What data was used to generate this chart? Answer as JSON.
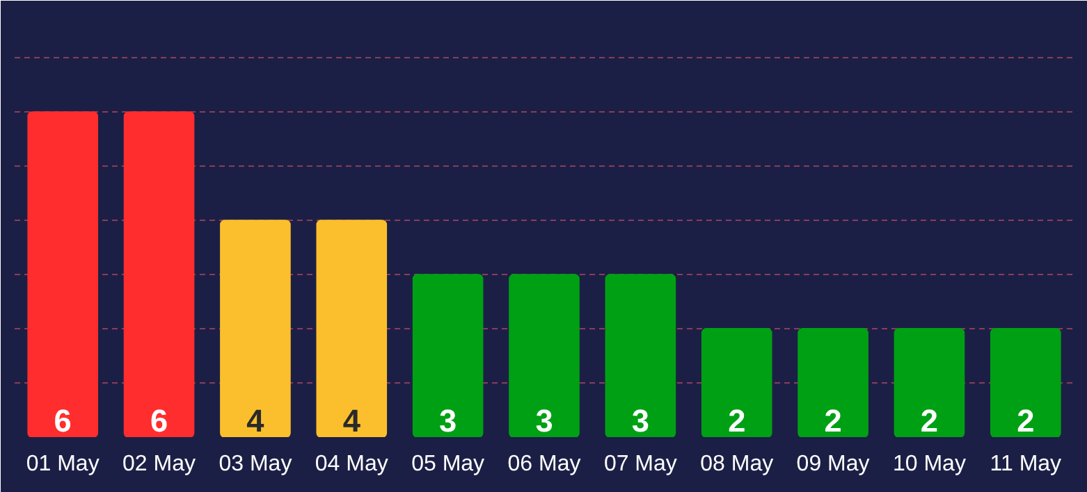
{
  "chart_data": {
    "type": "bar",
    "categories": [
      "01 May",
      "02 May",
      "03 May",
      "04 May",
      "05 May",
      "06 May",
      "07 May",
      "08 May",
      "09 May",
      "10 May",
      "11 May"
    ],
    "values": [
      6,
      6,
      4,
      4,
      3,
      3,
      3,
      2,
      2,
      2,
      2
    ],
    "colors": [
      "#ff2d2d",
      "#ff2d2d",
      "#fbbf2d",
      "#fbbf2d",
      "#00a014",
      "#00a014",
      "#00a014",
      "#00a014",
      "#00a014",
      "#00a014",
      "#00a014"
    ],
    "ylim": [
      0,
      7.8
    ],
    "yticks": [
      {
        "value": 1,
        "label": null
      },
      {
        "value": 2,
        "label": null
      },
      {
        "value": 3,
        "label": null
      },
      {
        "value": 4,
        "label": null
      },
      {
        "value": 5,
        "label": null
      },
      {
        "value": 6,
        "label": null
      },
      {
        "value": 7,
        "label": null
      }
    ],
    "grid": "y",
    "tick_labels": "x",
    "data_labels": true
  }
}
